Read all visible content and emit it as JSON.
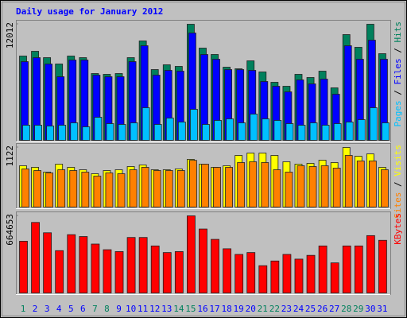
{
  "chart_data": [
    {
      "type": "bar",
      "title": "Daily usage for January 2012",
      "legend_separator": " / ",
      "series": [
        {
          "name": "Hits",
          "color": "#00805c",
          "values": [
            8721,
            9214,
            8556,
            7898,
            8721,
            8556,
            6911,
            6829,
            6911,
            8556,
            10284,
            7322,
            7816,
            7651,
            12012,
            9543,
            8885,
            7569,
            7404,
            8227,
            7075,
            6006,
            5594,
            6829,
            6500,
            7158,
            5430,
            10942,
            9626,
            12012,
            8967
          ]
        },
        {
          "name": "Files",
          "color": "#0000ff",
          "values": [
            8145,
            8556,
            7898,
            6582,
            8309,
            8309,
            6746,
            6582,
            6582,
            8145,
            9790,
            6746,
            7240,
            7158,
            11106,
            8885,
            8392,
            7322,
            7322,
            7240,
            6088,
            5594,
            5018,
            6253,
            5841,
            6335,
            4772,
            9790,
            8392,
            10366,
            8392
          ]
        },
        {
          "name": "Pages",
          "color": "#00c0ff",
          "values": [
            1563,
            1563,
            1481,
            1563,
            1810,
            1399,
            2386,
            1728,
            1645,
            1810,
            3373,
            1645,
            2304,
            1892,
            3209,
            1645,
            2057,
            2221,
            1810,
            2715,
            2221,
            2057,
            1728,
            1563,
            1810,
            1563,
            1728,
            1892,
            2139,
            3373,
            1810
          ]
        }
      ],
      "ylim": [
        0,
        12012
      ],
      "yticks": [
        12012
      ]
    },
    {
      "type": "bar",
      "legend_separator": " / ",
      "series": [
        {
          "name": "Visits",
          "color": "#ffff00",
          "values": [
            778,
            748,
            658,
            808,
            748,
            703,
            628,
            688,
            703,
            763,
            793,
            703,
            703,
            718,
            898,
            808,
            748,
            778,
            972,
            1017,
            1017,
            972,
            853,
            808,
            823,
            883,
            838,
            1122,
            957,
            1002,
            748
          ]
        },
        {
          "name": "Sites",
          "color": "#ff8000",
          "values": [
            718,
            688,
            643,
            703,
            688,
            658,
            583,
            643,
            628,
            703,
            748,
            688,
            688,
            688,
            880,
            808,
            748,
            748,
            838,
            853,
            838,
            703,
            658,
            778,
            763,
            778,
            733,
            972,
            868,
            868,
            703
          ]
        }
      ],
      "ylim": [
        0,
        1122
      ],
      "yticks": [
        1122
      ]
    },
    {
      "type": "bar",
      "series": [
        {
          "name": "KBytes",
          "color": "#ff0000",
          "values": [
            445803,
            607913,
            518752,
            364748,
            502541,
            486330,
            421486,
            372853,
            356642,
            478224,
            478224,
            405275,
            348537,
            356642,
            664653,
            551174,
            462014,
            380959,
            332326,
            348537,
            235060,
            275587,
            332326,
            291798,
            324220,
            405275,
            259376,
            405275,
            405275,
            494436,
            453908
          ]
        }
      ],
      "ylim": [
        0,
        664653
      ],
      "yticks": [
        664653
      ],
      "categories": [
        "1",
        "2",
        "3",
        "4",
        "5",
        "6",
        "7",
        "8",
        "9",
        "10",
        "11",
        "12",
        "13",
        "14",
        "15",
        "16",
        "17",
        "18",
        "19",
        "20",
        "21",
        "22",
        "23",
        "24",
        "25",
        "26",
        "27",
        "28",
        "29",
        "30",
        "31"
      ],
      "category_colors": [
        "#00805c",
        "#0000ff",
        "#0000ff",
        "#0000ff",
        "#0000ff",
        "#0000ff",
        "#00805c",
        "#00805c",
        "#0000ff",
        "#0000ff",
        "#0000ff",
        "#0000ff",
        "#0000ff",
        "#00805c",
        "#00805c",
        "#0000ff",
        "#0000ff",
        "#0000ff",
        "#0000ff",
        "#0000ff",
        "#00805c",
        "#00805c",
        "#0000ff",
        "#0000ff",
        "#0000ff",
        "#0000ff",
        "#0000ff",
        "#00805c",
        "#00805c",
        "#0000ff",
        "#0000ff"
      ]
    }
  ]
}
